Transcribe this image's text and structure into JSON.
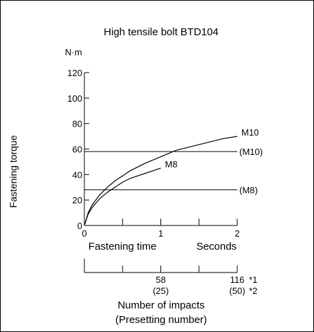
{
  "chart_data": {
    "type": "line",
    "title": "High tensile bolt BTD104",
    "ylabel": "Fastening torque",
    "yunit": "N·m",
    "xlabel": "Fastening time",
    "xunit": "Seconds",
    "ylim": [
      0,
      120
    ],
    "xlim": [
      0,
      2
    ],
    "yticks": [
      0,
      20,
      40,
      60,
      80,
      100,
      120
    ],
    "ytick_labels": [
      "0",
      "20",
      "40",
      "60",
      "80",
      "100",
      "120"
    ],
    "xticks": [
      0,
      0.5,
      1,
      1.5,
      2
    ],
    "xtick_labels": [
      {
        "x": 0,
        "label": "0"
      },
      {
        "x": 1,
        "label": "1"
      },
      {
        "x": 2,
        "label": "2"
      }
    ],
    "grid": false,
    "series": [
      {
        "name": "M10",
        "x": [
          0,
          0.05,
          0.1,
          0.2,
          0.3,
          0.4,
          0.5,
          0.6,
          0.8,
          1.0,
          1.2,
          1.4,
          1.6,
          1.8,
          2.0
        ],
        "y": [
          0,
          10,
          16,
          24,
          30,
          35,
          39,
          43,
          49,
          54,
          59,
          62,
          65,
          68,
          70
        ]
      },
      {
        "name": "M8",
        "x": [
          0,
          0.05,
          0.1,
          0.2,
          0.3,
          0.4,
          0.5,
          0.6,
          0.7,
          0.8,
          0.9,
          1.0
        ],
        "y": [
          0,
          9,
          14,
          21,
          26,
          30,
          34,
          37,
          39,
          41,
          43,
          45
        ]
      }
    ],
    "reference_lines": [
      {
        "name": "(M10)",
        "y": 58
      },
      {
        "name": "(M8)",
        "y": 28
      }
    ],
    "secondary_axis": {
      "title_line1": "Number of impacts",
      "title_line2": "(Presetting number)",
      "ticks": [
        0,
        0.5,
        1,
        1.5,
        2
      ],
      "labels": [
        {
          "x": 1,
          "impacts": "58",
          "presetting": "(25)"
        },
        {
          "x": 2,
          "impacts": "116",
          "presetting": "(50)"
        }
      ],
      "footnote_marks": [
        "*1",
        "*2"
      ]
    }
  }
}
